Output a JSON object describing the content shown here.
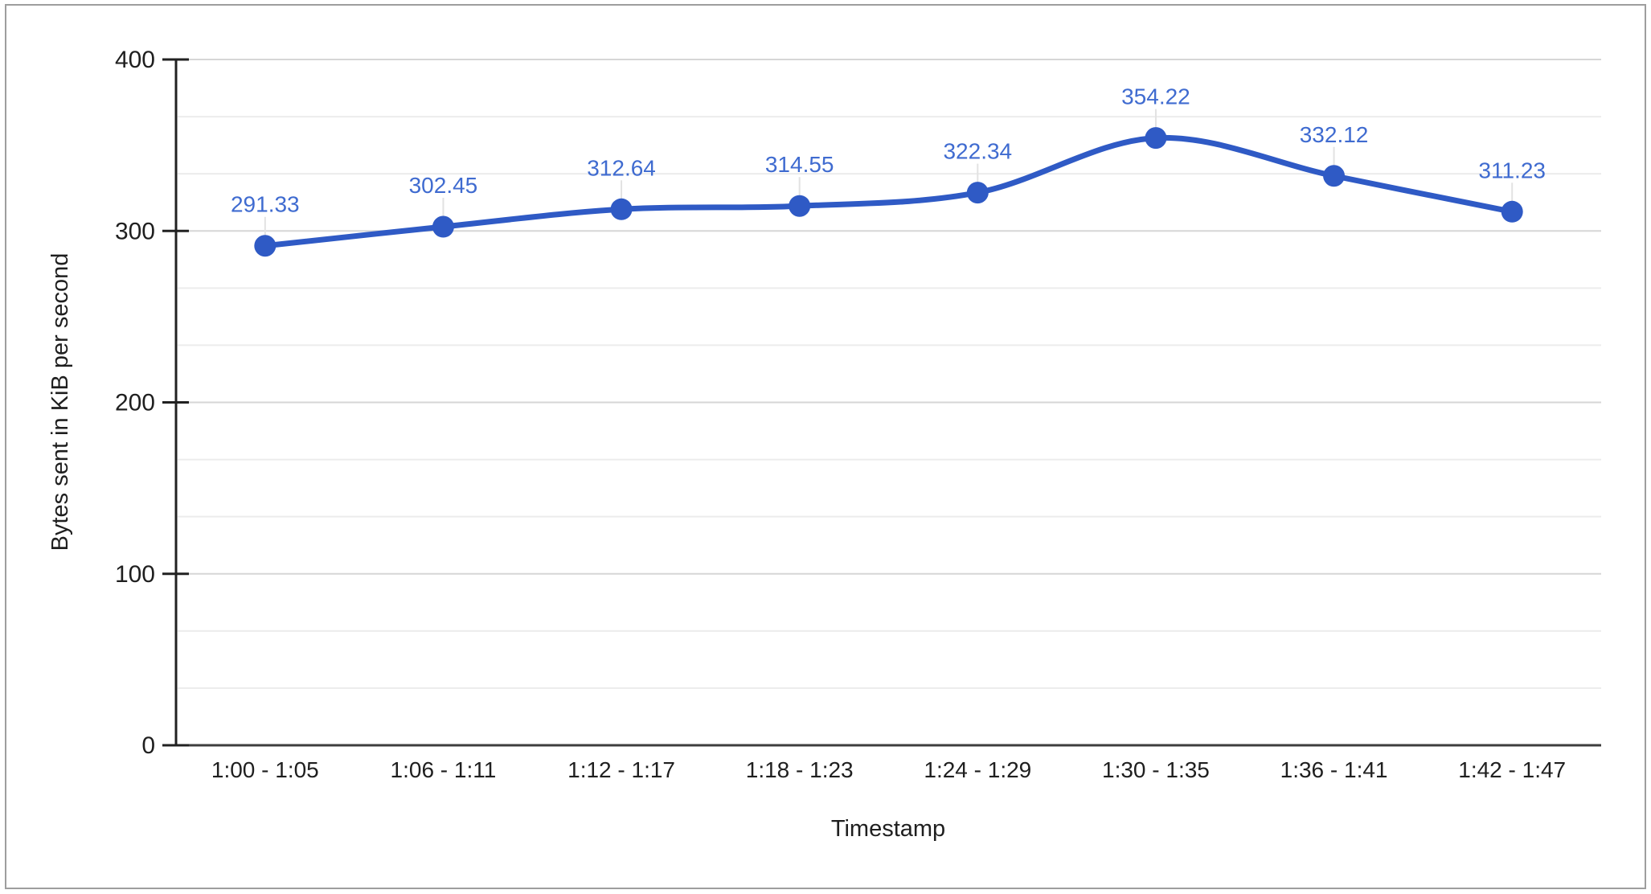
{
  "chart_data": {
    "type": "line",
    "title": "",
    "categories": [
      "1:00 - 1:05",
      "1:06 - 1:11",
      "1:12 - 1:17",
      "1:18 - 1:23",
      "1:24 - 1:29",
      "1:30 - 1:35",
      "1:36 - 1:41",
      "1:42 - 1:47"
    ],
    "values": [
      291.33,
      302.45,
      312.64,
      314.55,
      322.34,
      354.22,
      332.12,
      311.23
    ],
    "data_labels": [
      "291.33",
      "302.45",
      "312.64",
      "314.55",
      "322.34",
      "354.22",
      "332.12",
      "311.23"
    ],
    "xlabel": "Timestamp",
    "ylabel": "Bytes sent in KiB per second",
    "ylim": [
      0,
      400
    ],
    "y_major_ticks": [
      0,
      100,
      200,
      300,
      400
    ],
    "minor_gridlines_between_majors": 2,
    "grid": "horizontal-only",
    "legend": "none",
    "smooth": true,
    "marker": "circle"
  },
  "colors": {
    "series": "#2f5ac5",
    "data_label": "#3f6bd0",
    "axis_line": "#212121",
    "baseline": "#3d3d3d",
    "major_gridline": "#d6d6d6",
    "minor_gridline": "#ececec",
    "leader_line": "#e2e2e2",
    "tick_label": "#1f1f1f",
    "frame_border": "#9e9e9e",
    "background": "#ffffff"
  }
}
